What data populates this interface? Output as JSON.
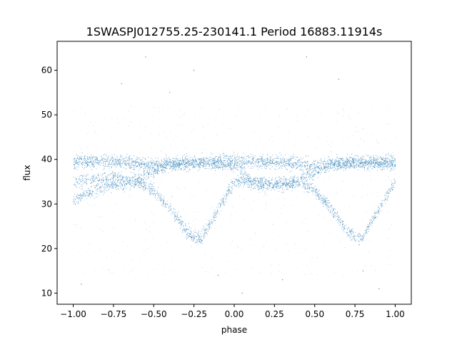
{
  "chart_data": {
    "type": "scatter",
    "title": "1SWASPJ012755.25-230141.1 Period 16883.11914s",
    "xlabel": "phase",
    "ylabel": "flux",
    "xlim": [
      -1.1,
      1.1
    ],
    "ylim": [
      7.5,
      66.5
    ],
    "xticks": [
      -1.0,
      -0.75,
      -0.5,
      -0.25,
      0.0,
      0.25,
      0.5,
      0.75,
      1.0
    ],
    "xtick_labels": [
      "−1.00",
      "−0.75",
      "−0.50",
      "−0.25",
      "0.00",
      "0.25",
      "0.50",
      "0.75",
      "1.00"
    ],
    "yticks": [
      10,
      20,
      30,
      40,
      50,
      60
    ],
    "ytick_labels": [
      "10",
      "20",
      "30",
      "40",
      "50",
      "60"
    ],
    "grid": false,
    "marker_color": "#1f77b4",
    "phase_range": [
      -1.0,
      1.0
    ],
    "series": [
      {
        "component": "upper-band",
        "x": [
          -1.0,
          -0.75,
          -0.5,
          -0.25,
          0.0,
          0.25,
          0.5,
          0.75,
          1.0
        ],
        "y": [
          39.5,
          39.5,
          38.5,
          39.5,
          39.5,
          39.5,
          38.5,
          39.5,
          39.5
        ]
      },
      {
        "component": "primary-eclipse",
        "x": [
          -1.0,
          -0.8,
          -0.6,
          -0.5,
          -0.4,
          -0.3,
          -0.25,
          -0.2,
          -0.1,
          0.0,
          0.1,
          0.2,
          0.25,
          0.3,
          0.4,
          0.5,
          0.6,
          0.7,
          0.75,
          0.8,
          0.9,
          1.0
        ],
        "y": [
          31,
          34,
          35,
          33,
          29,
          24,
          22.5,
          22.5,
          29,
          35,
          35,
          34,
          34.5,
          34,
          35,
          33,
          29,
          24,
          22.5,
          22.5,
          29,
          35
        ]
      },
      {
        "component": "secondary-eclipse",
        "x": [
          -1.0,
          -0.9,
          -0.75,
          -0.6,
          -0.5,
          -0.4,
          -0.2,
          0.0,
          0.1,
          0.25,
          0.4,
          0.5,
          0.6,
          0.8,
          1.0
        ],
        "y": [
          35,
          35.5,
          36,
          35.5,
          37,
          39,
          39,
          38.5,
          35.5,
          34.5,
          35.5,
          37,
          39,
          39,
          38.5
        ]
      },
      {
        "component": "outliers",
        "x": [
          -0.55,
          0.45,
          -0.25,
          0.65,
          -0.95,
          0.05,
          0.8,
          -0.4,
          0.3,
          -0.7,
          0.9,
          -0.1
        ],
        "y": [
          63,
          63,
          60,
          58,
          12,
          10,
          15,
          55,
          13,
          57,
          11,
          14
        ]
      }
    ]
  }
}
